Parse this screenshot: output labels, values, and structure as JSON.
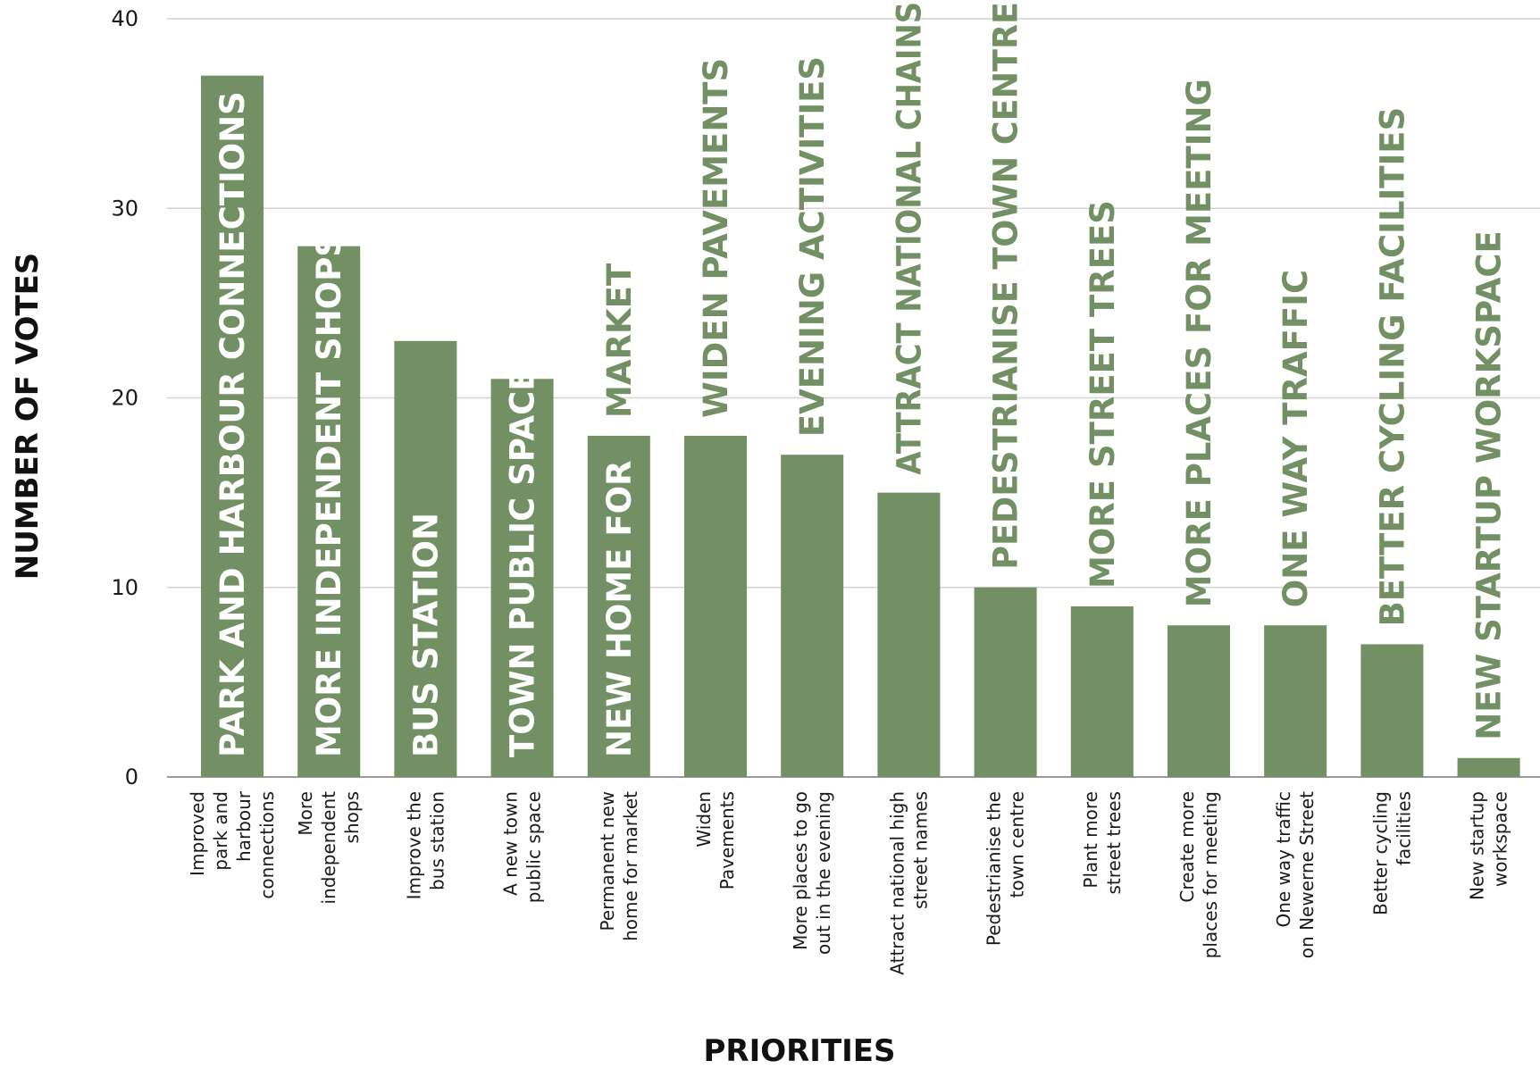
{
  "chart_data": {
    "type": "bar",
    "xlabel": "PRIORITIES",
    "ylabel": "NUMBER OF VOTES",
    "ylim": [
      0,
      40
    ],
    "yticks": [
      0,
      10,
      20,
      30,
      40
    ],
    "grid": true,
    "bar_color": "#738f64",
    "label_color_inside": "#ffffff",
    "label_color_outside": "#738f64",
    "categories": [
      [
        "Improved",
        "park and",
        "harbour",
        "connections"
      ],
      [
        "More",
        "independent",
        "shops"
      ],
      [
        "Improve the",
        "bus station"
      ],
      [
        "A new town",
        "public space"
      ],
      [
        "Permanent new",
        "home for market"
      ],
      [
        "Widen",
        "Pavements"
      ],
      [
        "More places to go",
        "out in the evening"
      ],
      [
        "Attract national high",
        "street names"
      ],
      [
        "Pedestrianise the",
        "town centre"
      ],
      [
        "Plant more",
        "street trees"
      ],
      [
        "Create more",
        "places for meeting"
      ],
      [
        "One way traffic",
        "on Newerne Street"
      ],
      [
        "Better cycling",
        "facilities"
      ],
      [
        "New startup",
        "workspace"
      ]
    ],
    "values": [
      37,
      28,
      23,
      21,
      18,
      18,
      17,
      15,
      10,
      9,
      8,
      8,
      7,
      1
    ],
    "bar_labels": [
      {
        "lines": [
          "PARK AND HARBOUR CONNECTIONS"
        ],
        "inside": [
          true
        ]
      },
      {
        "lines": [
          "MORE INDEPENDENT SHOPS"
        ],
        "inside": [
          true
        ]
      },
      {
        "lines": [
          "BUS STATION"
        ],
        "inside": [
          true
        ]
      },
      {
        "lines": [
          "TOWN PUBLIC SPACE"
        ],
        "inside": [
          true
        ]
      },
      {
        "lines": [
          "NEW HOME FOR",
          "MARKET"
        ],
        "inside": [
          true,
          false
        ]
      },
      {
        "lines": [
          "WIDEN PAVEMENTS"
        ],
        "inside": [
          false
        ]
      },
      {
        "lines": [
          "EVENING ACTIVITIES"
        ],
        "inside": [
          false
        ]
      },
      {
        "lines": [
          "ATTRACT NATIONAL CHAINS"
        ],
        "inside": [
          false
        ]
      },
      {
        "lines": [
          "PEDESTRIANISE TOWN CENTRE"
        ],
        "inside": [
          false
        ]
      },
      {
        "lines": [
          "MORE STREET TREES"
        ],
        "inside": [
          false
        ]
      },
      {
        "lines": [
          "MORE PLACES FOR MEETING"
        ],
        "inside": [
          false
        ]
      },
      {
        "lines": [
          "ONE WAY TRAFFIC"
        ],
        "inside": [
          false
        ]
      },
      {
        "lines": [
          "BETTER CYCLING FACILITIES"
        ],
        "inside": [
          false
        ]
      },
      {
        "lines": [
          "NEW STARTUP WORKSPACE"
        ],
        "inside": [
          false
        ]
      }
    ]
  }
}
